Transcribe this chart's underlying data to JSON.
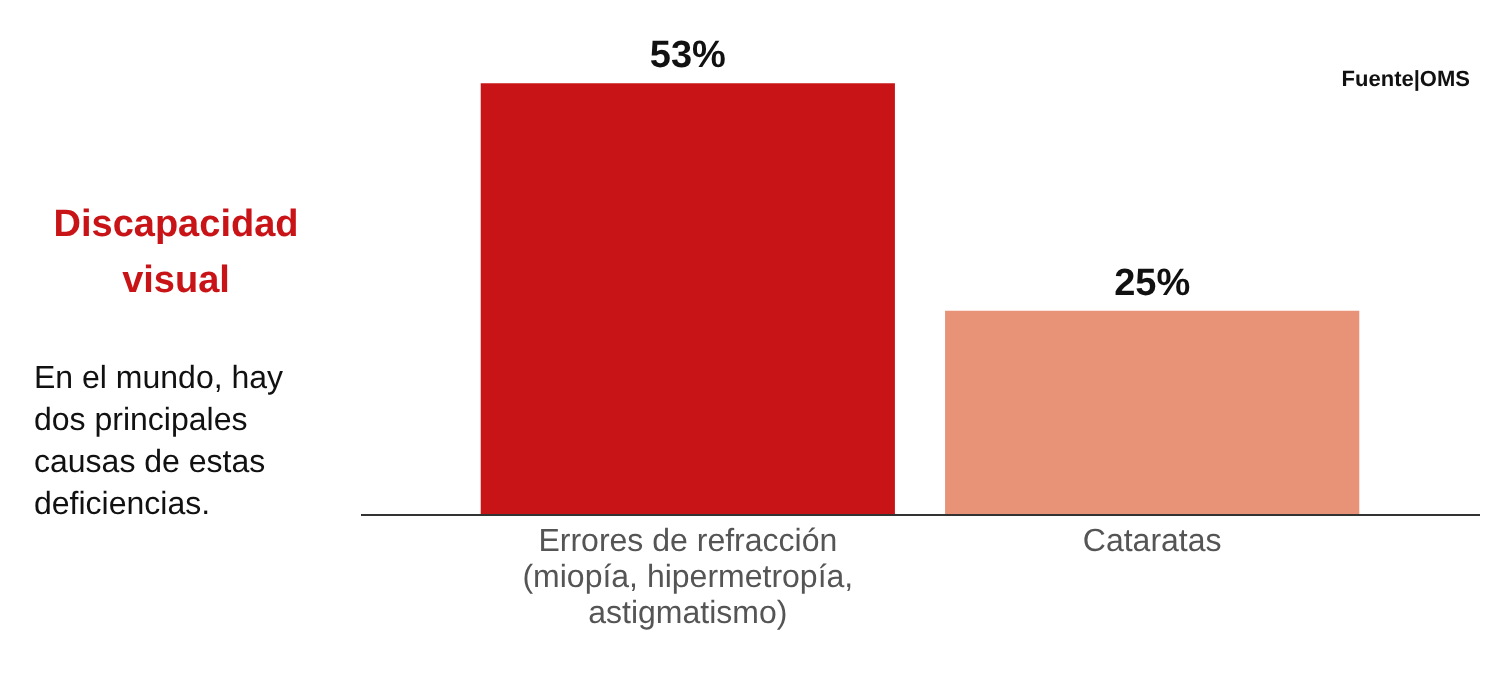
{
  "chart_data": {
    "type": "bar",
    "title": "Discapacidad visual",
    "subtitle": "En el mundo, hay dos principales causas de estas deficiencias.",
    "categories": [
      "Errores de refracción (miopía, hipermetropía, astigmatismo)",
      "Cataratas"
    ],
    "values": [
      53,
      25
    ],
    "colors": [
      "#c91417",
      "#e89277"
    ],
    "value_labels": [
      "53%",
      "25%"
    ],
    "annotations": [
      "Fuente|OMS"
    ]
  }
}
